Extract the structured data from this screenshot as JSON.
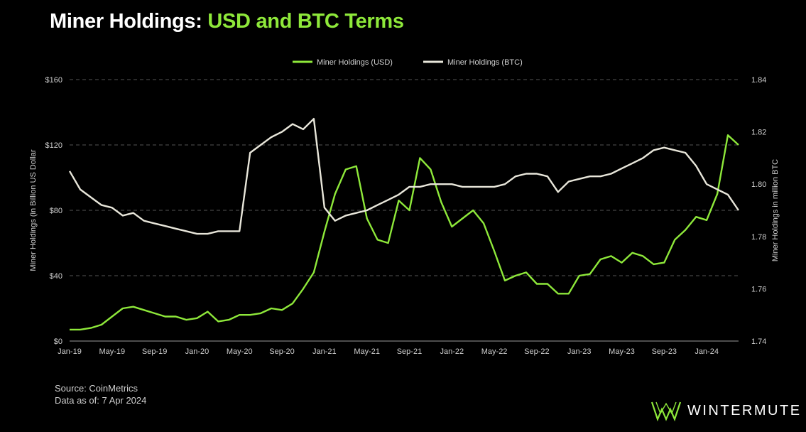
{
  "title": {
    "part1": "Miner Holdings:",
    "part2": "USD and BTC Terms"
  },
  "footer": {
    "source": "Source: CoinMetrics",
    "asof": "Data as of: 7 Apr 2024"
  },
  "brand": {
    "name": "WINTERMUTE",
    "logo_icon": "wintermute-logo-icon"
  },
  "colors": {
    "usd": "#8ee83a",
    "btc": "#e8e6da",
    "grid": "#555555",
    "text": "#cfcfcf"
  },
  "chart_data": {
    "type": "line",
    "legend_position": "top-center",
    "grid": "horizontal dashed",
    "x_tick_labels": [
      "Jan-19",
      "May-19",
      "Sep-19",
      "Jan-20",
      "May-20",
      "Sep-20",
      "Jan-21",
      "May-21",
      "Sep-21",
      "Jan-22",
      "May-22",
      "Sep-22",
      "Jan-23",
      "May-23",
      "Sep-23",
      "Jan-24"
    ],
    "x_start": "Jan-19",
    "x_end": "Apr-24",
    "y_left": {
      "label": "Miner Holdings (in Billion  US Dollar",
      "ticks": [
        "$0",
        "$40",
        "$80",
        "$120",
        "$160"
      ],
      "range": [
        0,
        160
      ]
    },
    "y_right": {
      "label": "Miner Holdings in million BTC",
      "ticks": [
        "1.74",
        "1.76",
        "1.78",
        "1.80",
        "1.82",
        "1.84"
      ],
      "range": [
        1.74,
        1.84
      ]
    },
    "series": [
      {
        "name": "Miner Holdings (USD)",
        "axis": "left",
        "points": [
          [
            "Jan-19",
            7
          ],
          [
            "Feb-19",
            7
          ],
          [
            "Mar-19",
            8
          ],
          [
            "Apr-19",
            10
          ],
          [
            "May-19",
            15
          ],
          [
            "Jun-19",
            20
          ],
          [
            "Jul-19",
            21
          ],
          [
            "Aug-19",
            19
          ],
          [
            "Sep-19",
            17
          ],
          [
            "Oct-19",
            15
          ],
          [
            "Nov-19",
            15
          ],
          [
            "Dec-19",
            13
          ],
          [
            "Jan-20",
            14
          ],
          [
            "Feb-20",
            18
          ],
          [
            "Mar-20",
            12
          ],
          [
            "Apr-20",
            13
          ],
          [
            "May-20",
            16
          ],
          [
            "Jun-20",
            16
          ],
          [
            "Jul-20",
            17
          ],
          [
            "Aug-20",
            20
          ],
          [
            "Sep-20",
            19
          ],
          [
            "Oct-20",
            23
          ],
          [
            "Nov-20",
            32
          ],
          [
            "Dec-20",
            42
          ],
          [
            "Jan-21",
            67
          ],
          [
            "Feb-21",
            90
          ],
          [
            "Mar-21",
            105
          ],
          [
            "Apr-21",
            107
          ],
          [
            "May-21",
            75
          ],
          [
            "Jun-21",
            62
          ],
          [
            "Jul-21",
            60
          ],
          [
            "Aug-21",
            86
          ],
          [
            "Sep-21",
            80
          ],
          [
            "Oct-21",
            112
          ],
          [
            "Nov-21",
            105
          ],
          [
            "Dec-21",
            85
          ],
          [
            "Jan-22",
            70
          ],
          [
            "Feb-22",
            75
          ],
          [
            "Mar-22",
            80
          ],
          [
            "Apr-22",
            72
          ],
          [
            "May-22",
            55
          ],
          [
            "Jun-22",
            37
          ],
          [
            "Jul-22",
            40
          ],
          [
            "Aug-22",
            42
          ],
          [
            "Sep-22",
            35
          ],
          [
            "Oct-22",
            35
          ],
          [
            "Nov-22",
            29
          ],
          [
            "Dec-22",
            29
          ],
          [
            "Jan-23",
            40
          ],
          [
            "Feb-23",
            41
          ],
          [
            "Mar-23",
            50
          ],
          [
            "Apr-23",
            52
          ],
          [
            "May-23",
            48
          ],
          [
            "Jun-23",
            54
          ],
          [
            "Jul-23",
            52
          ],
          [
            "Aug-23",
            47
          ],
          [
            "Sep-23",
            48
          ],
          [
            "Oct-23",
            62
          ],
          [
            "Nov-23",
            68
          ],
          [
            "Dec-23",
            76
          ],
          [
            "Jan-24",
            74
          ],
          [
            "Feb-24",
            90
          ],
          [
            "Mar-24",
            126
          ],
          [
            "Apr-24",
            120
          ]
        ]
      },
      {
        "name": "Miner Holdings (BTC)",
        "axis": "right",
        "points": [
          [
            "Jan-19",
            1.805
          ],
          [
            "Feb-19",
            1.798
          ],
          [
            "Mar-19",
            1.795
          ],
          [
            "Apr-19",
            1.792
          ],
          [
            "May-19",
            1.791
          ],
          [
            "Jun-19",
            1.788
          ],
          [
            "Jul-19",
            1.789
          ],
          [
            "Aug-19",
            1.786
          ],
          [
            "Sep-19",
            1.785
          ],
          [
            "Oct-19",
            1.784
          ],
          [
            "Nov-19",
            1.783
          ],
          [
            "Dec-19",
            1.782
          ],
          [
            "Jan-20",
            1.781
          ],
          [
            "Feb-20",
            1.781
          ],
          [
            "Mar-20",
            1.782
          ],
          [
            "Apr-20",
            1.782
          ],
          [
            "May-20",
            1.782
          ],
          [
            "Jun-20",
            1.812
          ],
          [
            "Jul-20",
            1.815
          ],
          [
            "Aug-20",
            1.818
          ],
          [
            "Sep-20",
            1.82
          ],
          [
            "Oct-20",
            1.823
          ],
          [
            "Nov-20",
            1.821
          ],
          [
            "Dec-20",
            1.825
          ],
          [
            "Jan-21",
            1.791
          ],
          [
            "Feb-21",
            1.786
          ],
          [
            "Mar-21",
            1.788
          ],
          [
            "Apr-21",
            1.789
          ],
          [
            "May-21",
            1.79
          ],
          [
            "Jun-21",
            1.792
          ],
          [
            "Jul-21",
            1.794
          ],
          [
            "Aug-21",
            1.796
          ],
          [
            "Sep-21",
            1.799
          ],
          [
            "Oct-21",
            1.799
          ],
          [
            "Nov-21",
            1.8
          ],
          [
            "Dec-21",
            1.8
          ],
          [
            "Jan-22",
            1.8
          ],
          [
            "Feb-22",
            1.799
          ],
          [
            "Mar-22",
            1.799
          ],
          [
            "Apr-22",
            1.799
          ],
          [
            "May-22",
            1.799
          ],
          [
            "Jun-22",
            1.8
          ],
          [
            "Jul-22",
            1.803
          ],
          [
            "Aug-22",
            1.804
          ],
          [
            "Sep-22",
            1.804
          ],
          [
            "Oct-22",
            1.803
          ],
          [
            "Nov-22",
            1.797
          ],
          [
            "Dec-22",
            1.801
          ],
          [
            "Jan-23",
            1.802
          ],
          [
            "Feb-23",
            1.803
          ],
          [
            "Mar-23",
            1.803
          ],
          [
            "Apr-23",
            1.804
          ],
          [
            "May-23",
            1.806
          ],
          [
            "Jun-23",
            1.808
          ],
          [
            "Jul-23",
            1.81
          ],
          [
            "Aug-23",
            1.813
          ],
          [
            "Sep-23",
            1.814
          ],
          [
            "Oct-23",
            1.813
          ],
          [
            "Nov-23",
            1.812
          ],
          [
            "Dec-23",
            1.807
          ],
          [
            "Jan-24",
            1.8
          ],
          [
            "Feb-24",
            1.798
          ],
          [
            "Mar-24",
            1.796
          ],
          [
            "Apr-24",
            1.79
          ]
        ]
      }
    ]
  }
}
